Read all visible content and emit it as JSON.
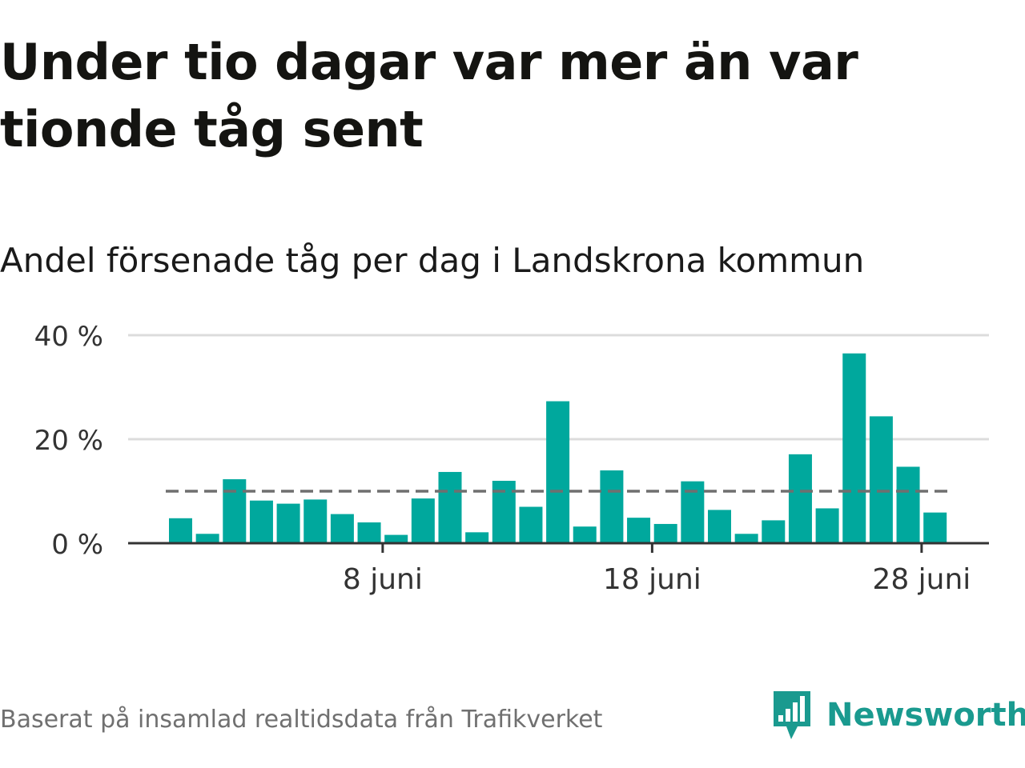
{
  "title": "Under tio dagar var mer än var tionde tåg sent",
  "subtitle": "Andel försenade tåg per dag i Landskrona kommun",
  "source": "Baserat på insamlad realtidsdata från Trafikverket",
  "brand": "Newsworthy",
  "colors": {
    "bar": "#00a89d",
    "reference_line": "#6f6f6f",
    "grid": "#dcdcdc",
    "axis": "#333333",
    "brand": "#1a9a8f"
  },
  "chart_data": {
    "type": "bar",
    "x": [
      "1 juni",
      "2 juni",
      "3 juni",
      "4 juni",
      "5 juni",
      "6 juni",
      "7 juni",
      "8 juni",
      "9 juni",
      "10 juni",
      "11 juni",
      "12 juni",
      "13 juni",
      "14 juni",
      "15 juni",
      "16 juni",
      "17 juni",
      "18 juni",
      "19 juni",
      "20 juni",
      "21 juni",
      "22 juni",
      "23 juni",
      "24 juni",
      "25 juni",
      "26 juni",
      "27 juni",
      "28 juni",
      "29 juni",
      "30 juni"
    ],
    "values": [
      4.8,
      1.8,
      12.3,
      8.2,
      7.6,
      8.4,
      5.6,
      4.0,
      1.6,
      8.6,
      13.7,
      2.1,
      12.0,
      7.0,
      27.3,
      3.2,
      14.0,
      4.9,
      3.7,
      11.9,
      6.4,
      1.8,
      4.4,
      17.1,
      6.7,
      36.5,
      24.4,
      14.7,
      5.9,
      null
    ],
    "reference_line": 10,
    "y_ticks": [
      "0 %",
      "20 %",
      "40 %"
    ],
    "y_tick_values": [
      0,
      20,
      40
    ],
    "ylim": [
      0,
      40
    ],
    "x_ticks": [
      "8 juni",
      "18 juni",
      "28 juni"
    ],
    "x_tick_indices": [
      7,
      17,
      27
    ],
    "grid": true,
    "xlabel": "",
    "ylabel": ""
  }
}
